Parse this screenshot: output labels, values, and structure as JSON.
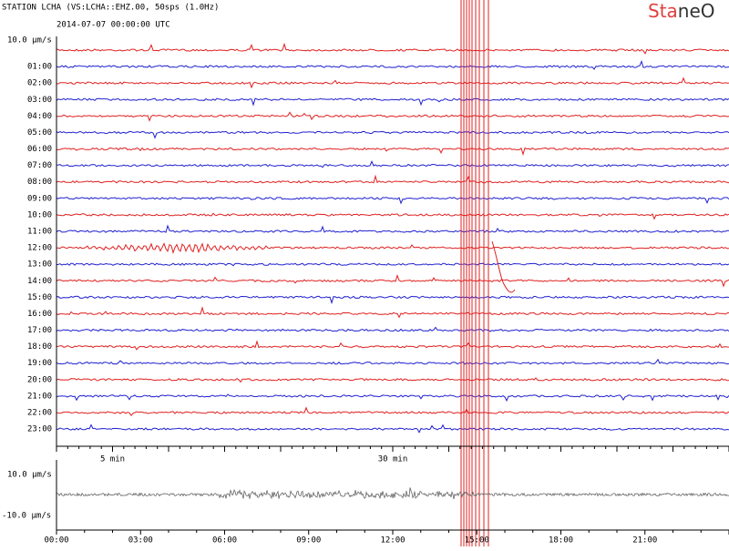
{
  "header": {
    "station": "STATION LCHA (VS:LCHA::EHZ.00, 50sps (1.0Hz)",
    "start": "2014-07-07 00:00:00 UTC",
    "logo_a": "Sta",
    "logo_b": "neO"
  },
  "helicorder": {
    "scale_label": "10.0 µm/s",
    "rows": [
      "01:00",
      "02:00",
      "03:00",
      "04:00",
      "05:00",
      "06:00",
      "07:00",
      "08:00",
      "09:00",
      "10:00",
      "11:00",
      "12:00",
      "13:00",
      "14:00",
      "15:00",
      "16:00",
      "17:00",
      "18:00",
      "19:00",
      "20:00",
      "21:00",
      "22:00",
      "23:00"
    ],
    "minute_labels": [
      "5 min",
      "30 min"
    ]
  },
  "overview": {
    "top_label": "10.0 µm/s",
    "bottom_label": "-10.0 µm/s",
    "time_labels": [
      "00:00",
      "03:00",
      "06:00",
      "09:00",
      "12:00",
      "15:00",
      "18:00",
      "21:00"
    ]
  }
}
